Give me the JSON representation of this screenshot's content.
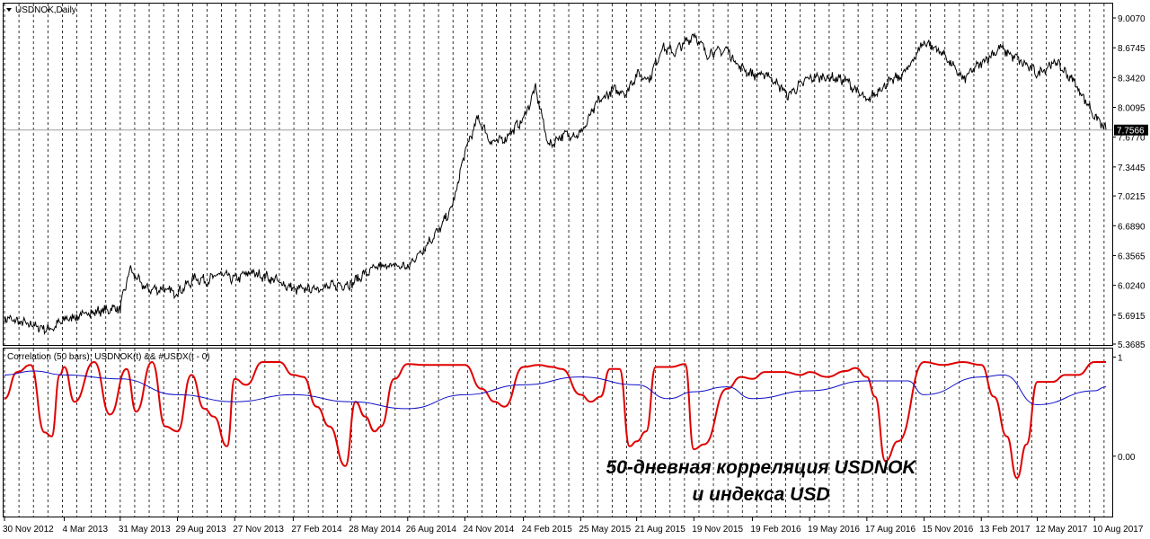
{
  "chart_data": [
    {
      "type": "line",
      "title": "USDNOK,Daily",
      "y_ticks": [
        "9.0070",
        "8.6745",
        "8.3420",
        "8.0095",
        "7.6770",
        "7.3445",
        "7.0215",
        "6.6890",
        "6.3565",
        "6.0240",
        "5.6915",
        "5.3685"
      ],
      "ylim": [
        5.3685,
        9.007
      ],
      "current_price": "7.7566",
      "x_ticks": [
        "30 Nov 2012",
        "4 Mar 2013",
        "31 May 2013",
        "29 Aug 2013",
        "27 Nov 2013",
        "27 Feb 2014",
        "28 May 2014",
        "26 Aug 2014",
        "24 Nov 2014",
        "24 Feb 2015",
        "25 May 2015",
        "21 Aug 2015",
        "19 Nov 2015",
        "19 Feb 2016",
        "19 May 2016",
        "17 Aug 2016",
        "15 Nov 2016",
        "13 Feb 2017",
        "12 May 2017",
        "10 Aug 2017"
      ],
      "grid": true,
      "series": [
        {
          "color": "#000000",
          "x": [
            "2012-11-30",
            "2013-01-15",
            "2013-02-10",
            "2013-03-04",
            "2013-04-15",
            "2013-05-20",
            "2013-05-31",
            "2013-06-15",
            "2013-07-10",
            "2013-08-05",
            "2013-08-29",
            "2013-09-25",
            "2013-10-15",
            "2013-11-05",
            "2013-11-27",
            "2013-12-20",
            "2014-01-25",
            "2014-02-27",
            "2014-03-25",
            "2014-04-20",
            "2014-05-28",
            "2014-06-25",
            "2014-07-20",
            "2014-08-26",
            "2014-09-20",
            "2014-10-15",
            "2014-11-05",
            "2014-11-24",
            "2014-12-15",
            "2015-01-05",
            "2015-01-25",
            "2015-02-24",
            "2015-03-15",
            "2015-04-05",
            "2015-04-25",
            "2015-05-25",
            "2015-06-20",
            "2015-07-15",
            "2015-08-05",
            "2015-08-21",
            "2015-09-10",
            "2015-09-30",
            "2015-10-20",
            "2015-11-19",
            "2015-12-10",
            "2016-01-10",
            "2016-01-28",
            "2016-02-19",
            "2016-03-15",
            "2016-04-15",
            "2016-05-19",
            "2016-06-15",
            "2016-07-15",
            "2016-08-17",
            "2016-09-15",
            "2016-10-15",
            "2016-11-15",
            "2016-12-15",
            "2017-01-15",
            "2017-02-13",
            "2017-03-15",
            "2017-04-15",
            "2017-05-12",
            "2017-06-10",
            "2017-07-10",
            "2017-08-10",
            "2017-08-28"
          ],
          "y": [
            5.66,
            5.57,
            5.53,
            5.64,
            5.72,
            5.76,
            5.77,
            6.2,
            5.98,
            5.98,
            5.94,
            6.1,
            6.08,
            6.15,
            6.09,
            6.17,
            6.1,
            5.98,
            5.98,
            6.01,
            6.04,
            6.18,
            6.25,
            6.23,
            6.44,
            6.65,
            6.91,
            7.52,
            7.89,
            7.61,
            7.66,
            7.88,
            8.22,
            7.57,
            7.7,
            7.71,
            8.06,
            8.2,
            8.18,
            8.38,
            8.33,
            8.67,
            8.63,
            8.82,
            8.61,
            8.65,
            8.48,
            8.37,
            8.37,
            8.15,
            8.34,
            8.35,
            8.31,
            8.08,
            8.27,
            8.38,
            8.75,
            8.61,
            8.32,
            8.51,
            8.67,
            8.53,
            8.39,
            8.52,
            8.28,
            7.92,
            7.76
          ]
        }
      ]
    },
    {
      "type": "line",
      "title": "Correlation (50 bars): USDNOK(t) && #USDX(t - 0)",
      "y_ticks": [
        "1",
        "0.00"
      ],
      "ylim": [
        -0.6,
        1.05
      ],
      "x_ticks": [
        "30 Nov 2012",
        "4 Mar 2013",
        "31 May 2013",
        "29 Aug 2013",
        "27 Nov 2013",
        "27 Feb 2014",
        "28 May 2014",
        "26 Aug 2014",
        "24 Nov 2014",
        "24 Feb 2015",
        "25 May 2015",
        "21 Aug 2015",
        "19 Nov 2015",
        "19 Feb 2016",
        "19 May 2016",
        "17 Aug 2016",
        "15 Nov 2016",
        "13 Feb 2017",
        "12 May 2017",
        "10 Aug 2017"
      ],
      "series": [
        {
          "color": "#e00000",
          "x": [
            "2012-11-30",
            "2012-12-20",
            "2013-01-10",
            "2013-02-01",
            "2013-02-12",
            "2013-02-25",
            "2013-03-04",
            "2013-03-20",
            "2013-04-20",
            "2013-05-15",
            "2013-06-10",
            "2013-06-25",
            "2013-07-20",
            "2013-08-10",
            "2013-08-29",
            "2013-09-20",
            "2013-10-10",
            "2013-10-25",
            "2013-11-15",
            "2013-11-27",
            "2013-12-15",
            "2014-01-10",
            "2014-02-05",
            "2014-02-27",
            "2014-03-15",
            "2014-04-05",
            "2014-04-25",
            "2014-05-20",
            "2014-06-05",
            "2014-06-20",
            "2014-07-05",
            "2014-07-15",
            "2014-08-05",
            "2014-08-26",
            "2014-09-20",
            "2014-10-15",
            "2014-11-24",
            "2014-12-20",
            "2015-01-10",
            "2015-01-25",
            "2015-02-24",
            "2015-03-20",
            "2015-04-10",
            "2015-04-25",
            "2015-05-25",
            "2015-06-10",
            "2015-06-25",
            "2015-07-10",
            "2015-07-25",
            "2015-08-10",
            "2015-08-21",
            "2015-09-05",
            "2015-09-20",
            "2015-10-15",
            "2015-11-05",
            "2015-11-19",
            "2015-12-05",
            "2016-01-10",
            "2016-02-01",
            "2016-02-19",
            "2016-03-10",
            "2016-04-10",
            "2016-05-05",
            "2016-05-19",
            "2016-06-15",
            "2016-07-15",
            "2016-07-30",
            "2016-08-17",
            "2016-08-30",
            "2016-09-15",
            "2016-10-05",
            "2016-11-15",
            "2016-12-15",
            "2017-01-15",
            "2017-02-13",
            "2017-03-05",
            "2017-03-25",
            "2017-04-10",
            "2017-04-25",
            "2017-05-12",
            "2017-06-05",
            "2017-06-25",
            "2017-07-15",
            "2017-08-10",
            "2017-08-28"
          ],
          "y": [
            0.58,
            0.85,
            0.92,
            0.24,
            0.2,
            0.82,
            0.9,
            0.55,
            0.95,
            0.42,
            0.88,
            0.45,
            0.95,
            0.3,
            0.25,
            0.82,
            0.48,
            0.4,
            0.1,
            0.78,
            0.72,
            0.95,
            0.95,
            0.82,
            0.8,
            0.5,
            0.3,
            -0.1,
            0.55,
            0.4,
            0.25,
            0.3,
            0.78,
            0.93,
            0.92,
            0.92,
            0.92,
            0.68,
            0.55,
            0.5,
            0.9,
            0.92,
            0.9,
            0.88,
            0.62,
            0.55,
            0.6,
            0.88,
            0.88,
            0.1,
            0.15,
            0.25,
            0.9,
            0.9,
            0.93,
            0.07,
            0.12,
            0.68,
            0.8,
            0.78,
            0.85,
            0.85,
            0.82,
            0.85,
            0.8,
            0.86,
            0.89,
            0.8,
            0.6,
            -0.05,
            0.15,
            0.95,
            0.92,
            0.95,
            0.92,
            0.6,
            0.2,
            -0.22,
            0.12,
            0.75,
            0.75,
            0.82,
            0.82,
            0.95,
            0.95
          ]
        },
        {
          "color": "#1010c8",
          "x": [
            "2012-11-30",
            "2013-01-15",
            "2013-03-04",
            "2013-05-31",
            "2013-08-29",
            "2013-11-27",
            "2014-02-27",
            "2014-05-28",
            "2014-08-26",
            "2014-11-24",
            "2015-02-24",
            "2015-05-25",
            "2015-08-21",
            "2015-10-10",
            "2015-11-19",
            "2016-01-10",
            "2016-02-19",
            "2016-05-19",
            "2016-08-17",
            "2016-10-20",
            "2016-11-15",
            "2017-02-13",
            "2017-03-20",
            "2017-05-12",
            "2017-08-10",
            "2017-08-28"
          ],
          "y": [
            0.82,
            0.86,
            0.82,
            0.78,
            0.62,
            0.55,
            0.62,
            0.55,
            0.48,
            0.62,
            0.72,
            0.8,
            0.72,
            0.58,
            0.65,
            0.7,
            0.58,
            0.66,
            0.76,
            0.76,
            0.62,
            0.8,
            0.82,
            0.52,
            0.66,
            0.7
          ]
        }
      ]
    }
  ],
  "annotation": {
    "line1": "50-дневная корреляция USDNOK",
    "line2": "и индекса USD"
  }
}
